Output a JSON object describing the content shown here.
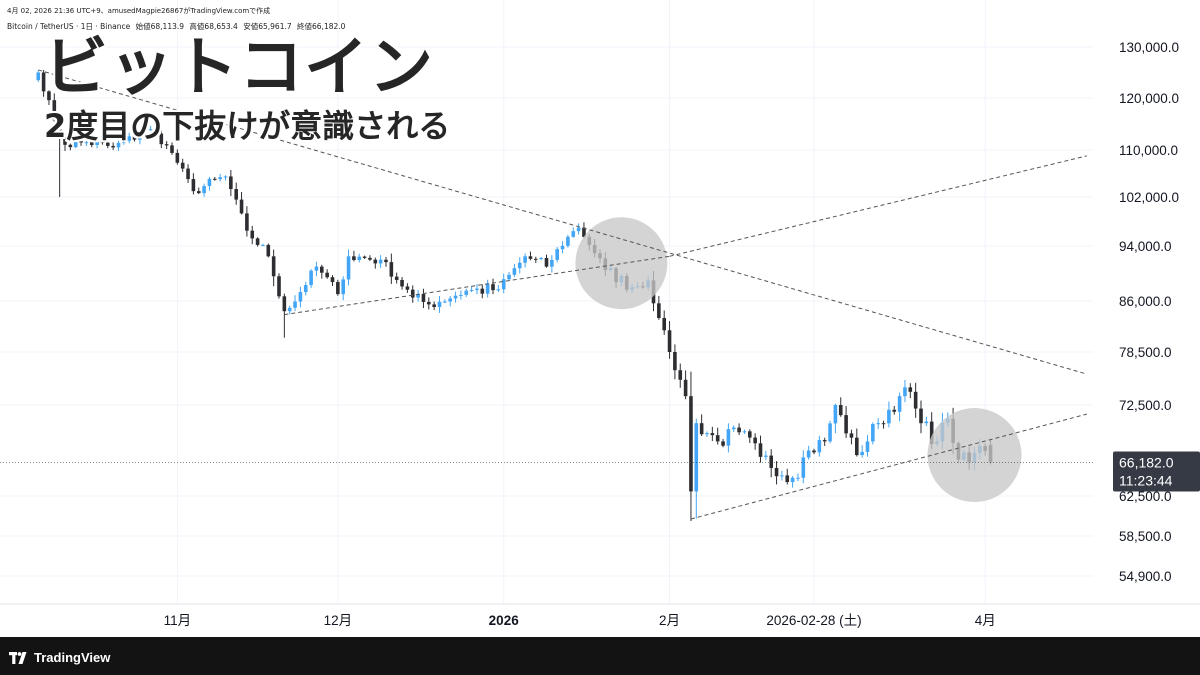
{
  "header": {
    "meta_line": "4月 02, 2026 21:36 UTC+9、amusedMagpie26867がTradingView.comで作成",
    "symbol_line": "Bitcoin / TetherUS · 1日 · Binance",
    "ohlc": {
      "open_label": "始値",
      "open": "68,113.9",
      "high_label": "高値",
      "high": "68,653.4",
      "low_label": "安値",
      "low": "65,961.7",
      "close_label": "終値",
      "close": "66,182.0"
    }
  },
  "overlay": {
    "title": "ビットコイン",
    "subtitle": "2度目の下抜けが意識される"
  },
  "price_badge": {
    "price": "66,182.0",
    "countdown": "11:23:44"
  },
  "footer": {
    "brand": "TradingView"
  },
  "colors": {
    "up": "#42a5f5",
    "down": "#2e2e32",
    "highlight_circle": "#c8c8c8",
    "badge": "#363a45",
    "trendline": "#555555"
  },
  "chart_data": {
    "type": "candlestick",
    "symbol": "Bitcoin / TetherUS",
    "interval": "1日",
    "exchange": "Binance",
    "y_ticks": [
      {
        "label": "130,000.0",
        "value": 130000
      },
      {
        "label": "120,000.0",
        "value": 120000
      },
      {
        "label": "110,000.0",
        "value": 110000
      },
      {
        "label": "102,000.0",
        "value": 102000
      },
      {
        "label": "94,000.0",
        "value": 94000
      },
      {
        "label": "86,000.0",
        "value": 86000
      },
      {
        "label": "78,500.0",
        "value": 78500
      },
      {
        "label": "72,500.0",
        "value": 72500
      },
      {
        "label": "62,500.0",
        "value": 62500
      },
      {
        "label": "58,500.0",
        "value": 58500
      },
      {
        "label": "54,900.0",
        "value": 54900
      }
    ],
    "x_ticks": [
      {
        "label": "11月",
        "date": "2025-11-01",
        "bold": false
      },
      {
        "label": "12月",
        "date": "2025-12-01",
        "bold": false
      },
      {
        "label": "2026",
        "date": "2026-01-01",
        "bold": true
      },
      {
        "label": "2月",
        "date": "2026-02-01",
        "bold": false
      },
      {
        "label": "2026-02-28 (土)",
        "date": "2026-02-28",
        "bold": false
      },
      {
        "label": "4月",
        "date": "2026-04-01",
        "bold": false
      }
    ],
    "last_price": 66182.0,
    "anchors": [
      {
        "date": "2025-10-05",
        "price": 123500
      },
      {
        "date": "2025-10-06",
        "price": 125000
      },
      {
        "date": "2025-10-10",
        "price": 113000
      },
      {
        "date": "2025-10-11",
        "price": 111000
      },
      {
        "date": "2025-10-15",
        "price": 111500
      },
      {
        "date": "2025-10-20",
        "price": 110500
      },
      {
        "date": "2025-10-27",
        "price": 114000
      },
      {
        "date": "2025-10-31",
        "price": 109500
      },
      {
        "date": "2025-11-04",
        "price": 103000
      },
      {
        "date": "2025-11-10",
        "price": 105500
      },
      {
        "date": "2025-11-14",
        "price": 96500
      },
      {
        "date": "2025-11-18",
        "price": 92500
      },
      {
        "date": "2025-11-21",
        "price": 84500
      },
      {
        "date": "2025-11-22",
        "price": 85000
      },
      {
        "date": "2025-11-27",
        "price": 91000
      },
      {
        "date": "2025-12-01",
        "price": 87000
      },
      {
        "date": "2025-12-03",
        "price": 92500
      },
      {
        "date": "2025-12-09",
        "price": 92000
      },
      {
        "date": "2025-12-15",
        "price": 86500
      },
      {
        "date": "2025-12-18",
        "price": 85500
      },
      {
        "date": "2025-12-25",
        "price": 87500
      },
      {
        "date": "2025-12-31",
        "price": 87700
      },
      {
        "date": "2026-01-05",
        "price": 92500
      },
      {
        "date": "2026-01-09",
        "price": 91000
      },
      {
        "date": "2026-01-13",
        "price": 95500
      },
      {
        "date": "2026-01-15",
        "price": 97000
      },
      {
        "date": "2026-01-20",
        "price": 90500
      },
      {
        "date": "2026-01-25",
        "price": 88000
      },
      {
        "date": "2026-01-28",
        "price": 89000
      },
      {
        "date": "2026-01-30",
        "price": 83500
      },
      {
        "date": "2026-02-01",
        "price": 78500
      },
      {
        "date": "2026-02-04",
        "price": 73500
      },
      {
        "date": "2026-02-05",
        "price": 63000
      },
      {
        "date": "2026-02-06",
        "price": 70500
      },
      {
        "date": "2026-02-10",
        "price": 68500
      },
      {
        "date": "2026-02-14",
        "price": 69500
      },
      {
        "date": "2026-02-18",
        "price": 66800
      },
      {
        "date": "2026-02-24",
        "price": 64500
      },
      {
        "date": "2026-02-27",
        "price": 67500
      },
      {
        "date": "2026-03-02",
        "price": 68500
      },
      {
        "date": "2026-03-04",
        "price": 72500
      },
      {
        "date": "2026-03-08",
        "price": 67000
      },
      {
        "date": "2026-03-12",
        "price": 70500
      },
      {
        "date": "2026-03-16",
        "price": 73500
      },
      {
        "date": "2026-03-17",
        "price": 74500
      },
      {
        "date": "2026-03-20",
        "price": 70500
      },
      {
        "date": "2026-03-23",
        "price": 68500
      },
      {
        "date": "2026-03-25",
        "price": 71000
      },
      {
        "date": "2026-03-27",
        "price": 66500
      },
      {
        "date": "2026-03-29",
        "price": 66200
      },
      {
        "date": "2026-03-31",
        "price": 68000
      },
      {
        "date": "2026-04-02",
        "price": 66182
      }
    ],
    "trendlines": [
      {
        "name": "upper-resistance",
        "from": {
          "date": "2025-10-06",
          "price": 125500
        },
        "to": {
          "date": "2026-04-20",
          "price": 76000
        }
      },
      {
        "name": "lower-support-1",
        "from": {
          "date": "2025-11-21",
          "price": 84000
        },
        "to": {
          "date": "2026-02-01",
          "price": 92500
        }
      },
      {
        "name": "lower-support-1-extension",
        "from": {
          "date": "2026-02-01",
          "price": 92500
        },
        "to": {
          "date": "2026-04-20",
          "price": 109000
        }
      },
      {
        "name": "lower-support-2",
        "from": {
          "date": "2026-02-05",
          "price": 60200
        },
        "to": {
          "date": "2026-04-20",
          "price": 71500
        }
      }
    ],
    "highlights": [
      {
        "date": "2026-01-23",
        "price": 91500
      },
      {
        "date": "2026-03-30",
        "price": 67000
      }
    ]
  }
}
